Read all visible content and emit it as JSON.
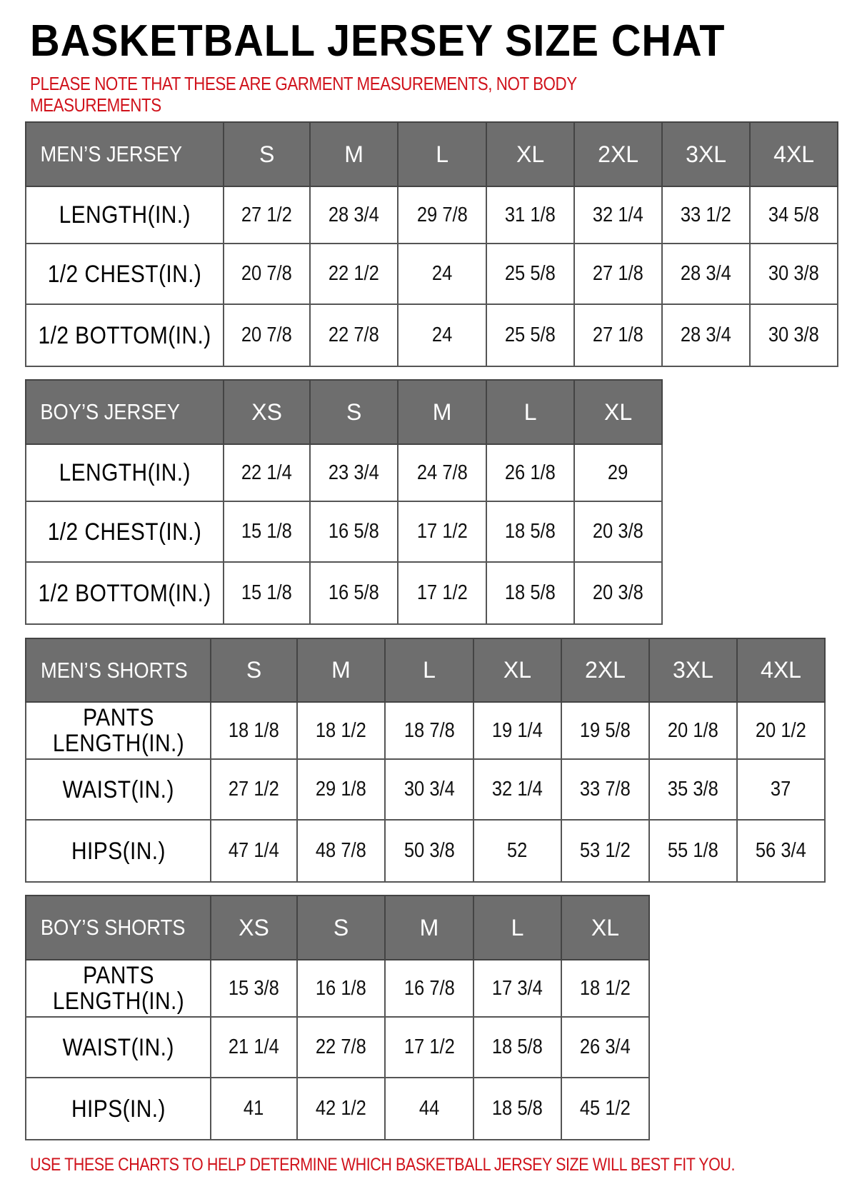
{
  "title": "BASKETBALL JERSEY SIZE CHAT",
  "note": [
    "PLEASE NOTE THAT THESE ARE GARMENT MEASUREMENTS, NOT BODY",
    "MEASUREMENTS"
  ],
  "footer": "USE THESE CHARTS TO HELP DETERMINE WHICH BASKETBALL JERSEY SIZE WILL BEST FIT YOU.",
  "colors": {
    "header_bg": "#6e6e6e",
    "note_red": "#d0121b"
  },
  "tables": [
    {
      "label": "MEN’S JERSEY",
      "sizes": [
        "S",
        "M",
        "L",
        "XL",
        "2XL",
        "3XL",
        "4XL"
      ],
      "rows": [
        {
          "label": "LENGTH(IN.)",
          "values": [
            "27 1/2",
            "28 3/4",
            "29 7/8",
            "31 1/8",
            "32 1/4",
            "33 1/2",
            "34 5/8"
          ]
        },
        {
          "label": "1/2 CHEST(IN.)",
          "values": [
            "20 7/8",
            "22 1/2",
            "24",
            "25 5/8",
            "27 1/8",
            "28 3/4",
            "30 3/8"
          ]
        },
        {
          "label": "1/2 BOTTOM(IN.)",
          "values": [
            "20 7/8",
            "22 7/8",
            "24",
            "25 5/8",
            "27 1/8",
            "28 3/4",
            "30 3/8"
          ]
        }
      ]
    },
    {
      "label": "BOY’S JERSEY",
      "sizes": [
        "XS",
        "S",
        "M",
        "L",
        "XL"
      ],
      "rows": [
        {
          "label": "LENGTH(IN.)",
          "values": [
            "22 1/4",
            "23 3/4",
            "24 7/8",
            "26 1/8",
            "29"
          ]
        },
        {
          "label": "1/2 CHEST(IN.)",
          "values": [
            "15 1/8",
            "16 5/8",
            "17 1/2",
            "18 5/8",
            "20 3/8"
          ]
        },
        {
          "label": "1/2 BOTTOM(IN.)",
          "values": [
            "15 1/8",
            "16 5/8",
            "17 1/2",
            "18 5/8",
            "20 3/8"
          ]
        }
      ]
    },
    {
      "label": "MEN’S SHORTS",
      "sizes": [
        "S",
        "M",
        "L",
        "XL",
        "2XL",
        "3XL",
        "4XL"
      ],
      "rows": [
        {
          "label": "PANTS LENGTH(IN.)",
          "values": [
            "18 1/8",
            "18 1/2",
            "18 7/8",
            "19 1/4",
            "19 5/8",
            "20 1/8",
            "20 1/2"
          ]
        },
        {
          "label": "WAIST(IN.)",
          "values": [
            "27 1/2",
            "29 1/8",
            "30 3/4",
            "32 1/4",
            "33 7/8",
            "35 3/8",
            "37"
          ]
        },
        {
          "label": "HIPS(IN.)",
          "values": [
            "47 1/4",
            "48 7/8",
            "50 3/8",
            "52",
            "53 1/2",
            "55 1/8",
            "56 3/4"
          ]
        }
      ]
    },
    {
      "label": "BOY’S SHORTS",
      "sizes": [
        "XS",
        "S",
        "M",
        "L",
        "XL"
      ],
      "rows": [
        {
          "label": "PANTS LENGTH(IN.)",
          "values": [
            "15 3/8",
            "16 1/8",
            "16 7/8",
            "17 3/4",
            "18 1/2"
          ]
        },
        {
          "label": "WAIST(IN.)",
          "values": [
            "21 1/4",
            "22 7/8",
            "17 1/2",
            "18 5/8",
            "26 3/4"
          ]
        },
        {
          "label": "HIPS(IN.)",
          "values": [
            "41",
            "42 1/2",
            "44",
            "18 5/8",
            "45 1/2"
          ]
        }
      ]
    }
  ]
}
